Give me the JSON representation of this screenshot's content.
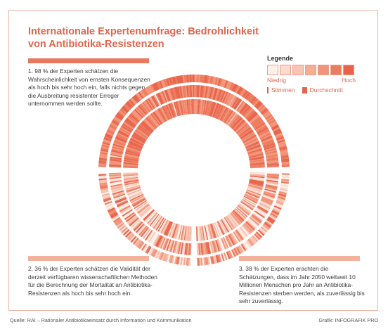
{
  "title_line1": "Internationale Expertenumfrage: Bedrohlichkeit",
  "title_line2": "von Antibiotika-Resistenzen",
  "legend": {
    "title": "Legende",
    "low_label": "Niedrig",
    "high_label": "Hoch",
    "votes_label": "Stimmen",
    "average_label": "Durchschnitt",
    "scale_colors": [
      "#fdf0ea",
      "#fbdbcf",
      "#f8c5b3",
      "#f5ad96",
      "#f29479",
      "#ee7b5e",
      "#e8634a"
    ]
  },
  "statements": [
    {
      "text": "1. 98 % der Experten schätzen die Wahrscheinlichkeit von ernsten Konsequenzen als hoch bis sehr hoch ein, falls nichts gegen die Ausbreitung resistenter Erreger unternommen werden sollte.",
      "percent": 98
    },
    {
      "text": "2. 36 % der Experten schätzen die Validität der derzeit verfügbaren wissenschaftlichen Methoden für die Berechnung der Mortalität an Antibiotika-Resistenzen als hoch bis sehr hoch ein.",
      "percent": 36
    },
    {
      "text": "3. 38 % der Experten erachten die Schätzungen, dass im Jahr 2050 weltweit 10 Millionen Menschen pro Jahr an Antibiotika-Resistenzen sterben werden, als zuverlässig bis sehr zuverlässig.",
      "percent": 38
    }
  ],
  "footer": {
    "source": "Quelle: RAI – Rationaler Antibiotikaeinsatz durch Information und Kommunikation",
    "credit": "Grafik: INFOGRAFIK PRO"
  },
  "chart_data": {
    "type": "radial",
    "series": [
      {
        "percent_high": 98
      },
      {
        "percent_high": 36
      },
      {
        "percent_high": 38
      }
    ]
  },
  "colors": {
    "accent": "#e0664c",
    "ring_strong": "#e8674c",
    "ring_light": "#f9d3c4"
  }
}
